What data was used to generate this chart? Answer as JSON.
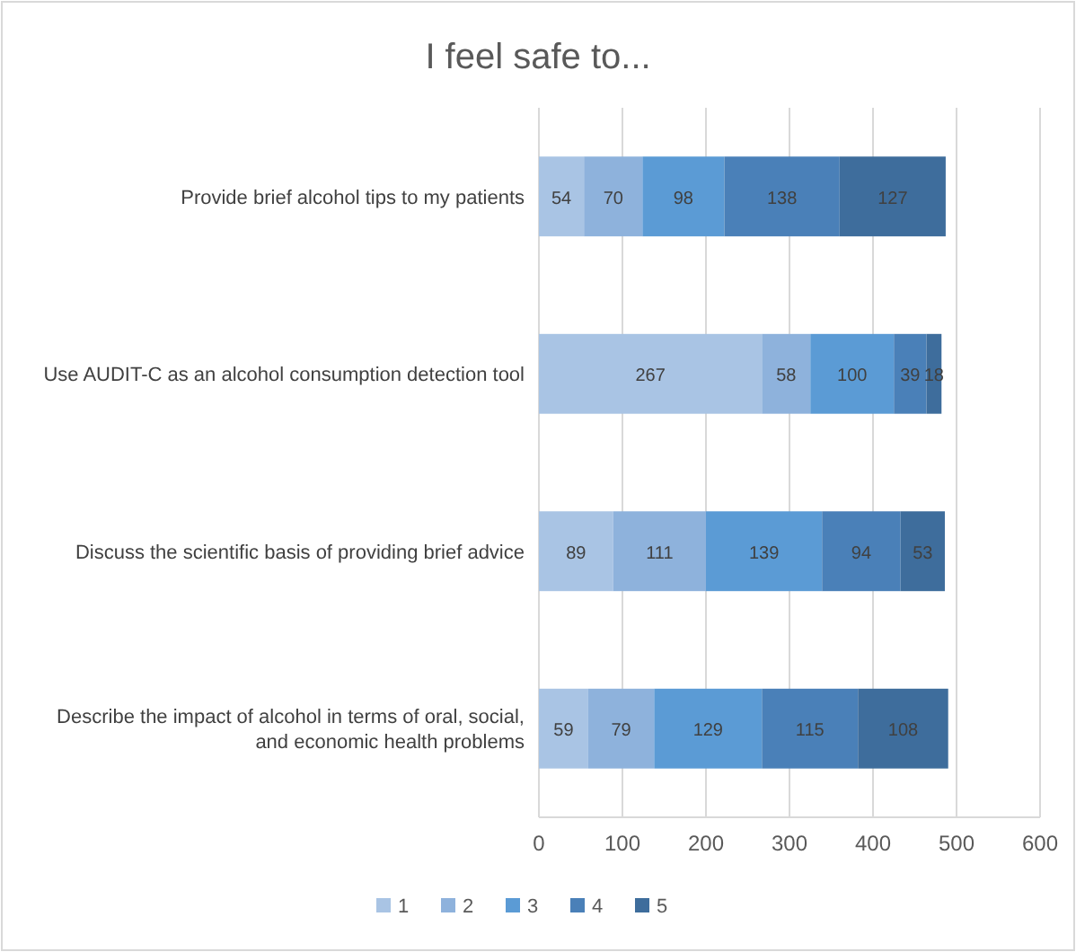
{
  "chart_data": {
    "type": "bar",
    "orientation": "horizontal",
    "stacked": true,
    "title": "I feel safe to...",
    "categories": [
      "Provide brief alcohol tips to my patients",
      "Use AUDIT-C as an alcohol consumption detection tool",
      "Discuss the scientific basis of providing brief advice",
      "Describe the impact of alcohol in terms of oral, social, and economic health problems"
    ],
    "series": [
      {
        "name": "1",
        "color": "#a9c4e4",
        "values": [
          54,
          267,
          89,
          59
        ]
      },
      {
        "name": "2",
        "color": "#8eb2dc",
        "values": [
          70,
          58,
          111,
          79
        ]
      },
      {
        "name": "3",
        "color": "#5b9bd5",
        "values": [
          98,
          100,
          139,
          129
        ]
      },
      {
        "name": "4",
        "color": "#4a80b8",
        "values": [
          138,
          39,
          94,
          115
        ]
      },
      {
        "name": "5",
        "color": "#3e6d9c",
        "values": [
          127,
          18,
          53,
          108
        ]
      }
    ],
    "xlim": [
      0,
      600
    ],
    "xticks": [
      0,
      100,
      200,
      300,
      400,
      500,
      600
    ],
    "grid": "x",
    "legend": "bottom",
    "data_labels": true
  }
}
